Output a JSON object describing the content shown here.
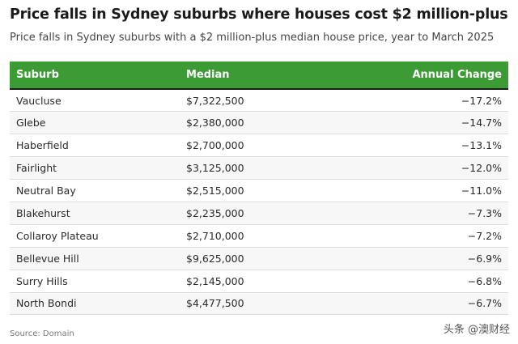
{
  "header": {
    "title": "Price falls in Sydney suburbs where houses cost $2 million-plus",
    "subtitle": "Price falls in Sydney suburbs with a $2 million-plus median house price, year to March 2025"
  },
  "table": {
    "columns": [
      "Suburb",
      "Median",
      "Annual Change"
    ],
    "rows": [
      [
        "Vaucluse",
        "$7,322,500",
        "−17.2%"
      ],
      [
        "Glebe",
        "$2,380,000",
        "−14.7%"
      ],
      [
        "Haberfield",
        "$2,700,000",
        "−13.1%"
      ],
      [
        "Fairlight",
        "$3,125,000",
        "−12.0%"
      ],
      [
        "Neutral Bay",
        "$2,515,000",
        "−11.0%"
      ],
      [
        "Blakehurst",
        "$2,235,000",
        "−7.3%"
      ],
      [
        "Collaroy Plateau",
        "$2,710,000",
        "−7.2%"
      ],
      [
        "Bellevue Hill",
        "$9,625,000",
        "−6.9%"
      ],
      [
        "Surry Hills",
        "$2,145,000",
        "−6.8%"
      ],
      [
        "North Bondi",
        "$4,477,500",
        "−6.7%"
      ]
    ]
  },
  "footer": {
    "source": "Source: Domain",
    "watermark": "头条 @澳财经"
  },
  "colors": {
    "header_bg": "#3d9b35",
    "header_text": "#ffffff"
  }
}
